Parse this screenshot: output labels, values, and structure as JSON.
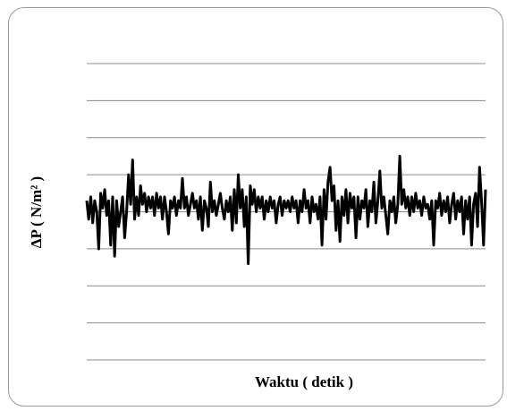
{
  "chart_data": {
    "type": "line",
    "title": "",
    "xlabel": "Waktu ( detik )",
    "ylabel": "ΔP ( N/m² )",
    "grid": "horizontal",
    "legend": "none",
    "series_color": "#000000",
    "y_grid_count": 8,
    "ylim": [
      -4,
      4
    ],
    "series": [
      {
        "values": [
          0.3,
          -0.2,
          0.4,
          -0.3,
          0.3,
          0.0,
          -1.0,
          0.5,
          0.1,
          0.6,
          -0.1,
          0.3,
          -0.9,
          0.4,
          -1.2,
          0.3,
          -0.4,
          0.0,
          0.4,
          -0.7,
          0.0,
          1.0,
          0.2,
          1.4,
          -0.2,
          0.4,
          -0.1,
          0.7,
          0.2,
          0.5,
          0.0,
          0.4,
          0.1,
          0.4,
          -0.1,
          0.5,
          0.1,
          0.4,
          -0.2,
          0.4,
          0.0,
          -0.6,
          0.3,
          0.1,
          0.4,
          -0.1,
          0.3,
          0.1,
          0.9,
          0.1,
          0.4,
          -0.1,
          0.2,
          0.5,
          0.1,
          0.3,
          -0.2,
          0.4,
          -0.5,
          0.3,
          0.1,
          -0.4,
          0.8,
          0.0,
          0.3,
          -0.1,
          0.2,
          0.5,
          0.1,
          -0.2,
          0.3,
          0.0,
          0.4,
          -0.5,
          0.6,
          -0.3,
          1.0,
          0.1,
          0.6,
          -0.4,
          0.4,
          -1.4,
          0.7,
          0.2,
          0.6,
          0.0,
          0.4,
          0.1,
          0.4,
          -0.2,
          0.3,
          0.0,
          0.4,
          0.1,
          0.3,
          -0.3,
          0.2,
          0.4,
          -0.1,
          0.3,
          0.1,
          0.3,
          0.0,
          0.4,
          0.1,
          0.3,
          -0.3,
          0.3,
          0.0,
          0.6,
          0.1,
          0.3,
          -0.3,
          0.4,
          0.0,
          0.2,
          -0.2,
          0.4,
          -0.9,
          0.6,
          -0.2,
          0.8,
          1.2,
          0.3,
          0.7,
          -0.5,
          0.3,
          -0.8,
          0.4,
          -0.1,
          0.6,
          -0.3,
          0.5,
          0.1,
          0.4,
          -0.7,
          0.4,
          -0.2,
          0.3,
          0.1,
          0.6,
          -0.4,
          0.3,
          0.0,
          0.8,
          -0.3,
          0.3,
          1.1,
          0.1,
          0.4,
          -0.1,
          -0.6,
          0.3,
          0.0,
          0.4,
          -0.3,
          0.2,
          1.5,
          0.2,
          0.6,
          0.1,
          0.4,
          -0.1,
          0.4,
          0.0,
          0.5,
          0.1,
          0.3,
          -0.1,
          0.4,
          0.1,
          0.2,
          -0.2,
          0.3,
          -0.9,
          0.3,
          0.1,
          0.5,
          -0.1,
          0.3,
          0.0,
          0.4,
          -0.3,
          0.2,
          0.5,
          -0.2,
          0.3,
          0.0,
          0.4,
          -0.6,
          0.3,
          -0.2,
          0.4,
          -0.9,
          0.2,
          0.5,
          -0.4,
          1.2,
          0.3,
          -0.9,
          0.6
        ]
      }
    ]
  }
}
